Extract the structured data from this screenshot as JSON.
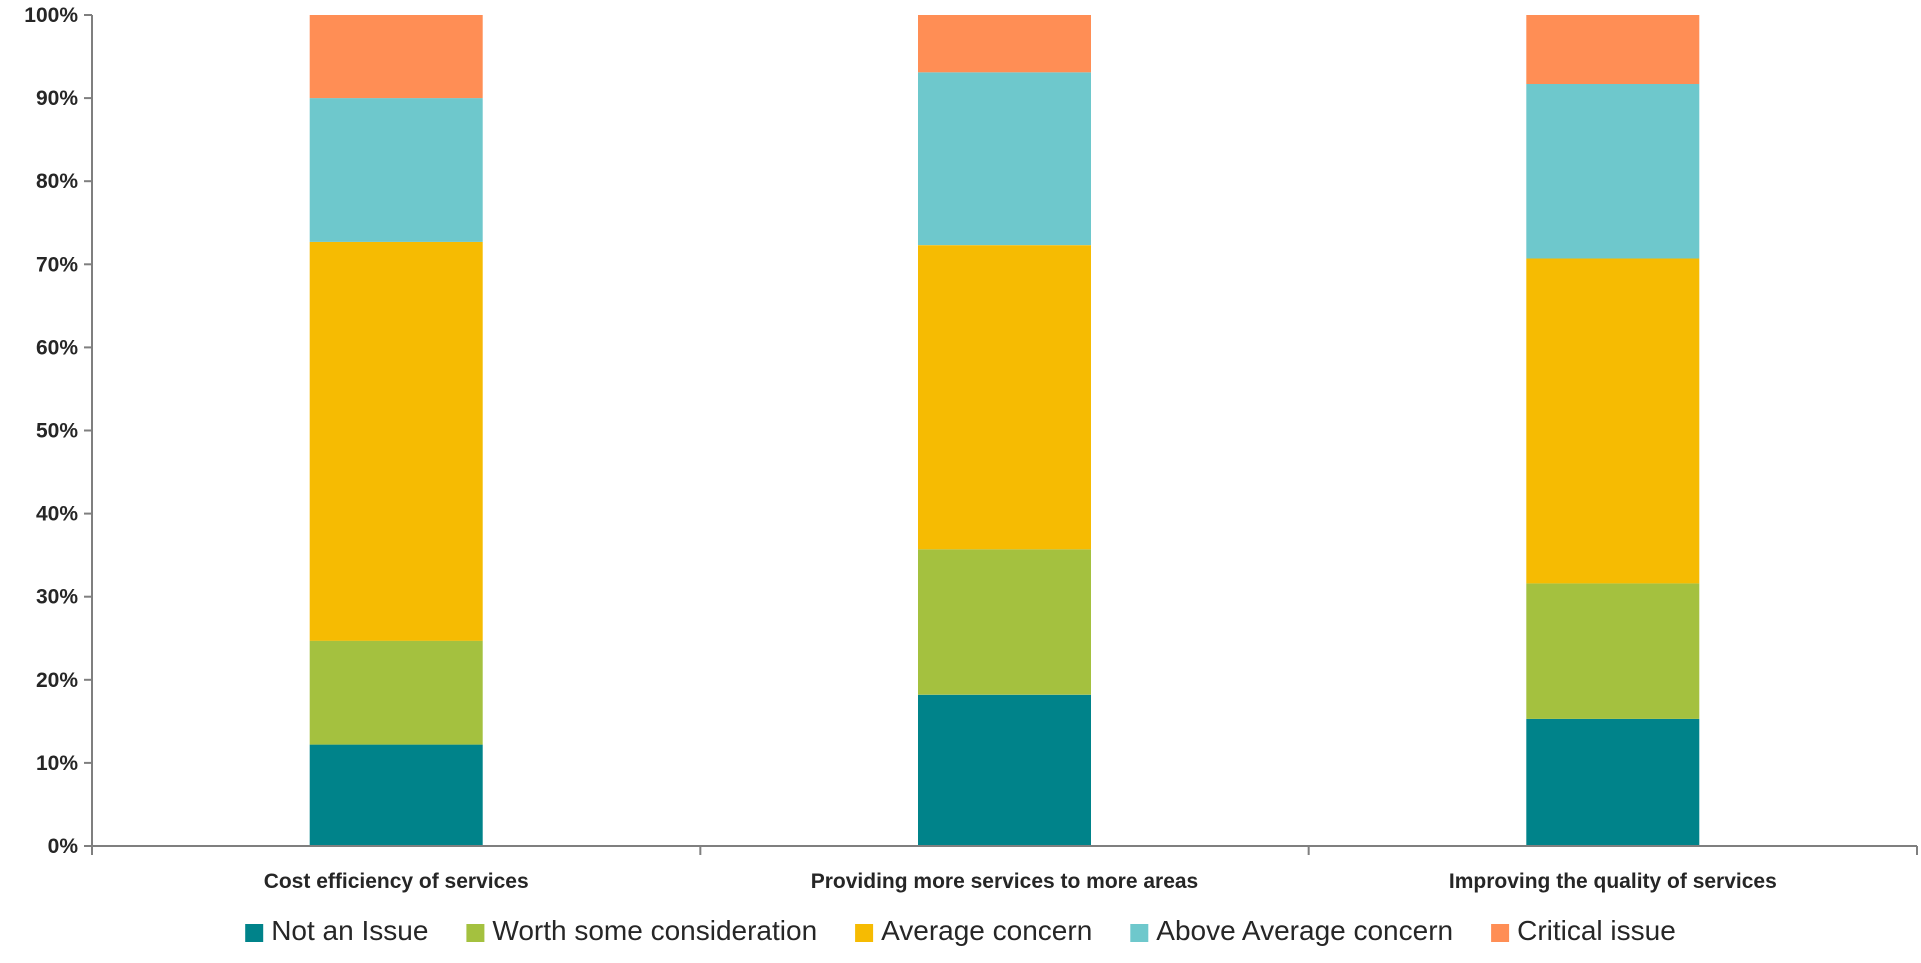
{
  "chart_data": {
    "type": "bar",
    "stacked": true,
    "percent_stacked": true,
    "categories": [
      "Cost efficiency of services",
      "Providing more services to more areas",
      "Improving the quality of services"
    ],
    "series": [
      {
        "name": "Not an Issue",
        "color": "#00838A",
        "values": [
          12.2,
          18.2,
          15.3
        ]
      },
      {
        "name": "Worth some consideration",
        "color": "#A4C13F",
        "values": [
          12.5,
          17.5,
          16.3
        ]
      },
      {
        "name": "Average concern",
        "color": "#F6BB02",
        "values": [
          48.0,
          36.6,
          39.1
        ]
      },
      {
        "name": "Above Average concern",
        "color": "#6EC8CC",
        "values": [
          17.3,
          20.8,
          21.0
        ]
      },
      {
        "name": "Critical issue",
        "color": "#FF8E55",
        "values": [
          10.0,
          6.9,
          8.3
        ]
      }
    ],
    "y_ticks": [
      "0%",
      "10%",
      "20%",
      "30%",
      "40%",
      "50%",
      "60%",
      "70%",
      "80%",
      "90%",
      "100%"
    ],
    "ylim": [
      0,
      100
    ],
    "xlabel": "",
    "ylabel": "",
    "grid": false,
    "legend_position": "bottom",
    "axis_color": "#7F7F7F"
  }
}
